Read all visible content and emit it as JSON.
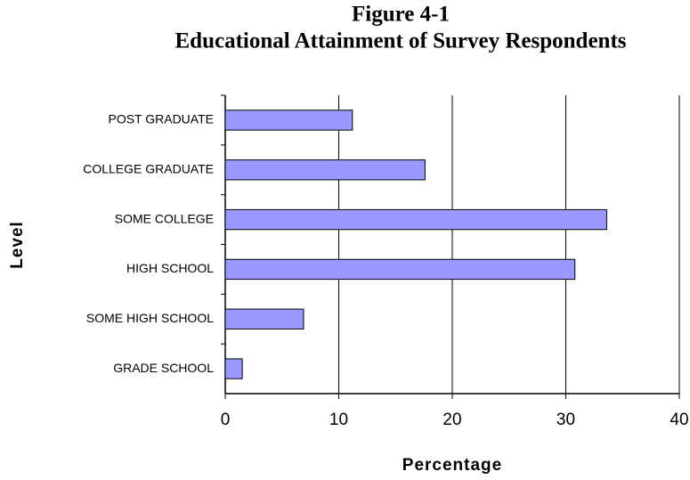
{
  "chart_data": {
    "type": "bar",
    "orientation": "horizontal",
    "title": [
      "Figure 4-1",
      "Educational Attainment of Survey Respondents"
    ],
    "x_label": "Percentage",
    "y_label": "Level",
    "categories": [
      "POST GRADUATE",
      "COLLEGE GRADUATE",
      "SOME COLLEGE",
      "HIGH SCHOOL",
      "SOME HIGH SCHOOL",
      "GRADE SCHOOL"
    ],
    "values": [
      11.2,
      17.6,
      33.6,
      30.8,
      6.9,
      1.5
    ],
    "color": "#9999ff",
    "xlim": [
      0,
      40
    ],
    "xticks": [
      0,
      10,
      20,
      30,
      40
    ],
    "grid": true
  }
}
